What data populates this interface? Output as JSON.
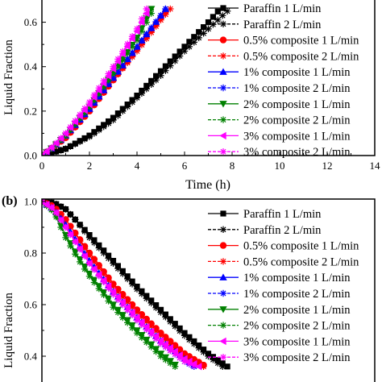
{
  "chart_data": [
    {
      "type": "line",
      "panel_label": "",
      "xlabel": "Time (h)",
      "ylabel": "Liquid Fraction",
      "xlim": [
        0,
        14
      ],
      "ylim": [
        0,
        0.7
      ],
      "x_ticks": [
        "0",
        "2",
        "4",
        "6",
        "8",
        "10",
        "12",
        "14"
      ],
      "y_ticks": [
        "0.0",
        "0.2",
        "0.4",
        "0.6"
      ],
      "grid": false,
      "legend_position": "right",
      "series": [
        {
          "name": "Paraffin 1 L/min",
          "color": "#000000",
          "dash": false,
          "marker": "square",
          "x": [
            0,
            1,
            2,
            3,
            4,
            5,
            6,
            7,
            7.5
          ],
          "y": [
            0,
            0.03,
            0.09,
            0.17,
            0.27,
            0.38,
            0.49,
            0.6,
            0.66
          ]
        },
        {
          "name": "Paraffin 2 L/min",
          "color": "#000000",
          "dash": true,
          "marker": "asterisk",
          "x": [
            0,
            1,
            2,
            3,
            4,
            5,
            6,
            7,
            7.8
          ],
          "y": [
            0,
            0.03,
            0.085,
            0.16,
            0.26,
            0.36,
            0.47,
            0.57,
            0.65
          ]
        },
        {
          "name": "0.5% composite 1 L/min",
          "color": "#ff0000",
          "dash": false,
          "marker": "circle",
          "x": [
            0,
            0.5,
            1,
            2,
            3,
            4,
            5,
            5.3
          ],
          "y": [
            0,
            0.04,
            0.08,
            0.2,
            0.34,
            0.48,
            0.62,
            0.66
          ]
        },
        {
          "name": "0.5% composite 2 L/min",
          "color": "#ff0000",
          "dash": true,
          "marker": "asterisk",
          "x": [
            0,
            0.5,
            1,
            2,
            3,
            4,
            5,
            5.4
          ],
          "y": [
            0,
            0.04,
            0.08,
            0.2,
            0.34,
            0.47,
            0.61,
            0.66
          ]
        },
        {
          "name": "1% composite 1 L/min",
          "color": "#0000ff",
          "dash": false,
          "marker": "triangle-up",
          "x": [
            0,
            0.5,
            1,
            2,
            3,
            4,
            5,
            5.2
          ],
          "y": [
            0,
            0.04,
            0.09,
            0.21,
            0.35,
            0.49,
            0.63,
            0.66
          ]
        },
        {
          "name": "1% composite 2 L/min",
          "color": "#0000ff",
          "dash": true,
          "marker": "asterisk",
          "x": [
            0,
            0.5,
            1,
            2,
            3,
            4,
            5,
            5.2
          ],
          "y": [
            0,
            0.04,
            0.09,
            0.21,
            0.35,
            0.49,
            0.63,
            0.66
          ]
        },
        {
          "name": "2% composite 1 L/min",
          "color": "#008000",
          "dash": false,
          "marker": "triangle-down",
          "x": [
            0,
            0.5,
            1,
            2,
            3,
            4,
            4.6
          ],
          "y": [
            0,
            0.04,
            0.09,
            0.22,
            0.37,
            0.53,
            0.66
          ]
        },
        {
          "name": "2% composite 2 L/min",
          "color": "#008000",
          "dash": true,
          "marker": "asterisk",
          "x": [
            0,
            0.5,
            1,
            2,
            3,
            4,
            4.7
          ],
          "y": [
            0,
            0.04,
            0.09,
            0.22,
            0.37,
            0.52,
            0.66
          ]
        },
        {
          "name": "3% composite 1 L/min",
          "color": "#ff00ff",
          "dash": false,
          "marker": "triangle-left",
          "x": [
            0,
            0.5,
            1,
            2,
            3,
            4,
            4.5
          ],
          "y": [
            0,
            0.045,
            0.1,
            0.23,
            0.39,
            0.56,
            0.66
          ]
        },
        {
          "name": "3% composite 2 L/min",
          "color": "#ff00ff",
          "dash": true,
          "marker": "asterisk",
          "x": [
            0,
            0.5,
            1,
            2,
            3,
            4,
            4.4
          ],
          "y": [
            0,
            0.045,
            0.1,
            0.24,
            0.4,
            0.57,
            0.66
          ]
        }
      ]
    },
    {
      "type": "line",
      "panel_label": "(b)",
      "xlabel": "",
      "ylabel": "Liquid Fraction",
      "xlim": [
        0,
        14
      ],
      "ylim": [
        0.3,
        1.0
      ],
      "x_ticks": [],
      "y_ticks": [
        "0.4",
        "0.6",
        "0.8",
        "1.0"
      ],
      "grid": false,
      "legend_position": "right",
      "series": [
        {
          "name": "Paraffin 1 L/min",
          "color": "#000000",
          "dash": false,
          "marker": "square",
          "x": [
            0,
            0.5,
            1,
            1.5,
            2,
            3,
            4,
            5,
            6,
            7,
            7.8
          ],
          "y": [
            1.0,
            0.995,
            0.97,
            0.92,
            0.87,
            0.77,
            0.67,
            0.58,
            0.49,
            0.41,
            0.36
          ]
        },
        {
          "name": "Paraffin 2 L/min",
          "color": "#000000",
          "dash": true,
          "marker": "asterisk",
          "x": [
            0,
            0.5,
            1,
            1.5,
            2,
            3,
            4,
            5,
            6,
            7,
            7.6
          ],
          "y": [
            1.0,
            0.995,
            0.97,
            0.92,
            0.86,
            0.76,
            0.66,
            0.57,
            0.48,
            0.4,
            0.36
          ]
        },
        {
          "name": "0.5% composite 1 L/min",
          "color": "#ff0000",
          "dash": false,
          "marker": "circle",
          "x": [
            0,
            0.5,
            1,
            2,
            3,
            4,
            5,
            6,
            6.9
          ],
          "y": [
            1.0,
            0.98,
            0.93,
            0.8,
            0.68,
            0.58,
            0.49,
            0.41,
            0.36
          ]
        },
        {
          "name": "0.5% composite 2 L/min",
          "color": "#ff0000",
          "dash": true,
          "marker": "asterisk",
          "x": [
            0,
            0.5,
            1,
            2,
            3,
            4,
            5,
            6,
            6.8
          ],
          "y": [
            1.0,
            0.98,
            0.93,
            0.79,
            0.67,
            0.57,
            0.48,
            0.4,
            0.36
          ]
        },
        {
          "name": "1% composite 1 L/min",
          "color": "#0000ff",
          "dash": false,
          "marker": "triangle-up",
          "x": [
            0,
            0.5,
            1,
            2,
            3,
            4,
            5,
            6,
            6.5
          ],
          "y": [
            1.0,
            0.97,
            0.91,
            0.77,
            0.65,
            0.55,
            0.46,
            0.39,
            0.36
          ]
        },
        {
          "name": "1% composite 2 L/min",
          "color": "#0000ff",
          "dash": true,
          "marker": "asterisk",
          "x": [
            0,
            0.5,
            1,
            2,
            3,
            4,
            5,
            6,
            6.4
          ],
          "y": [
            1.0,
            0.97,
            0.9,
            0.76,
            0.64,
            0.54,
            0.45,
            0.38,
            0.36
          ]
        },
        {
          "name": "2% composite 1 L/min",
          "color": "#008000",
          "dash": false,
          "marker": "triangle-down",
          "x": [
            0,
            0.5,
            1,
            1.5,
            2,
            3,
            4,
            5,
            5.7
          ],
          "y": [
            1.0,
            0.96,
            0.87,
            0.79,
            0.72,
            0.6,
            0.5,
            0.41,
            0.36
          ]
        },
        {
          "name": "2% composite 2 L/min",
          "color": "#008000",
          "dash": true,
          "marker": "asterisk",
          "x": [
            0,
            0.5,
            1,
            1.5,
            2,
            3,
            4,
            5,
            5.6
          ],
          "y": [
            1.0,
            0.96,
            0.86,
            0.78,
            0.71,
            0.59,
            0.49,
            0.4,
            0.36
          ]
        },
        {
          "name": "3% composite 1 L/min",
          "color": "#ff00ff",
          "dash": false,
          "marker": "triangle-left",
          "x": [
            0,
            0.5,
            1,
            2,
            3,
            4,
            5,
            6,
            6.6
          ],
          "y": [
            1.0,
            0.97,
            0.9,
            0.76,
            0.65,
            0.55,
            0.46,
            0.39,
            0.36
          ]
        },
        {
          "name": "3% composite 2 L/min",
          "color": "#ff00ff",
          "dash": true,
          "marker": "asterisk",
          "x": [
            0,
            0.5,
            1,
            2,
            3,
            4,
            5,
            6,
            6.5
          ],
          "y": [
            1.0,
            0.97,
            0.9,
            0.76,
            0.64,
            0.54,
            0.45,
            0.38,
            0.36
          ]
        }
      ]
    }
  ]
}
